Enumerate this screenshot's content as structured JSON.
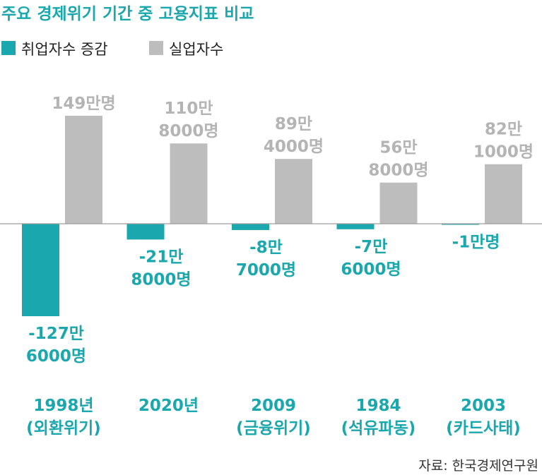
{
  "chart_data": {
    "type": "bar",
    "title": "주요 경제위기 기간 중 고용지표 비교",
    "categories": [
      {
        "year": "1998년",
        "event": "(외환위기)"
      },
      {
        "year": "2020년",
        "event": ""
      },
      {
        "year": "2009",
        "event": "(금융위기)"
      },
      {
        "year": "1984",
        "event": "(석유파동)"
      },
      {
        "year": "2003",
        "event": "(카드사태)"
      }
    ],
    "series": [
      {
        "name": "취업자수 증감",
        "color": "#1aa7ad",
        "values": [
          -1276000,
          -218000,
          -87000,
          -76000,
          -10000
        ],
        "labels": [
          [
            "-127만",
            "6000명"
          ],
          [
            "-21만",
            "8000명"
          ],
          [
            "-8만",
            "7000명"
          ],
          [
            "-7만",
            "6000명"
          ],
          [
            "-1만명"
          ]
        ]
      },
      {
        "name": "실업자수",
        "color": "#bdbdbd",
        "values": [
          1490000,
          1108000,
          894000,
          568000,
          821000
        ],
        "labels": [
          [
            "149만명"
          ],
          [
            "110만",
            "8000명"
          ],
          [
            "89만",
            "4000명"
          ],
          [
            "56만",
            "8000명"
          ],
          [
            "82만",
            "1000명"
          ]
        ]
      }
    ],
    "legend_position": "top-left",
    "grid": false
  },
  "source": "자료: 한국경제연구원"
}
